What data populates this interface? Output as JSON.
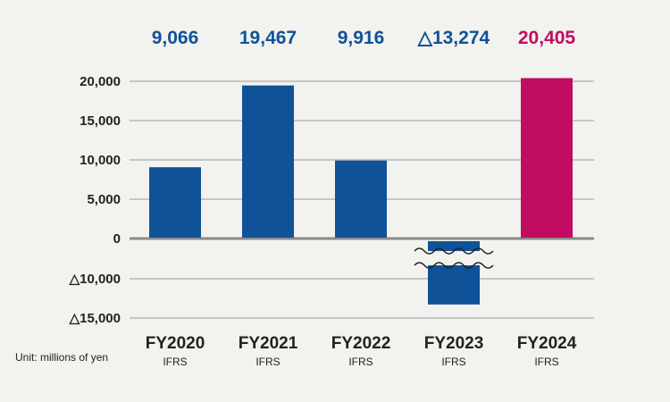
{
  "chart_data": {
    "type": "bar",
    "categories": [
      "FY2020",
      "FY2021",
      "FY2022",
      "FY2023",
      "FY2024"
    ],
    "sublabels": [
      "IFRS",
      "IFRS",
      "IFRS",
      "IFRS",
      "IFRS"
    ],
    "values": [
      9066,
      19467,
      9916,
      -13274,
      20405
    ],
    "value_labels": [
      "9,066",
      "19,467",
      "9,916",
      "△13,274",
      "20,405"
    ],
    "yticks": [
      {
        "value": 20000,
        "label": "20,000"
      },
      {
        "value": 15000,
        "label": "15,000"
      },
      {
        "value": 10000,
        "label": "10,000"
      },
      {
        "value": 5000,
        "label": "5,000"
      },
      {
        "value": 0,
        "label": "0"
      },
      {
        "value": -10000,
        "label": "△10,000"
      },
      {
        "value": -15000,
        "label": "△15,000"
      }
    ],
    "ylim": [
      -15000,
      20000
    ],
    "axis_break": "between 0 and △10,000 (negative side compressed)",
    "grid": true,
    "colors": {
      "default_bar": "#0f5298",
      "highlight_bar": "#c20c62",
      "label_default": "#0f5298",
      "label_highlight": "#c20c62"
    },
    "highlight_index": 4,
    "unit_note": "Unit: millions of yen"
  }
}
